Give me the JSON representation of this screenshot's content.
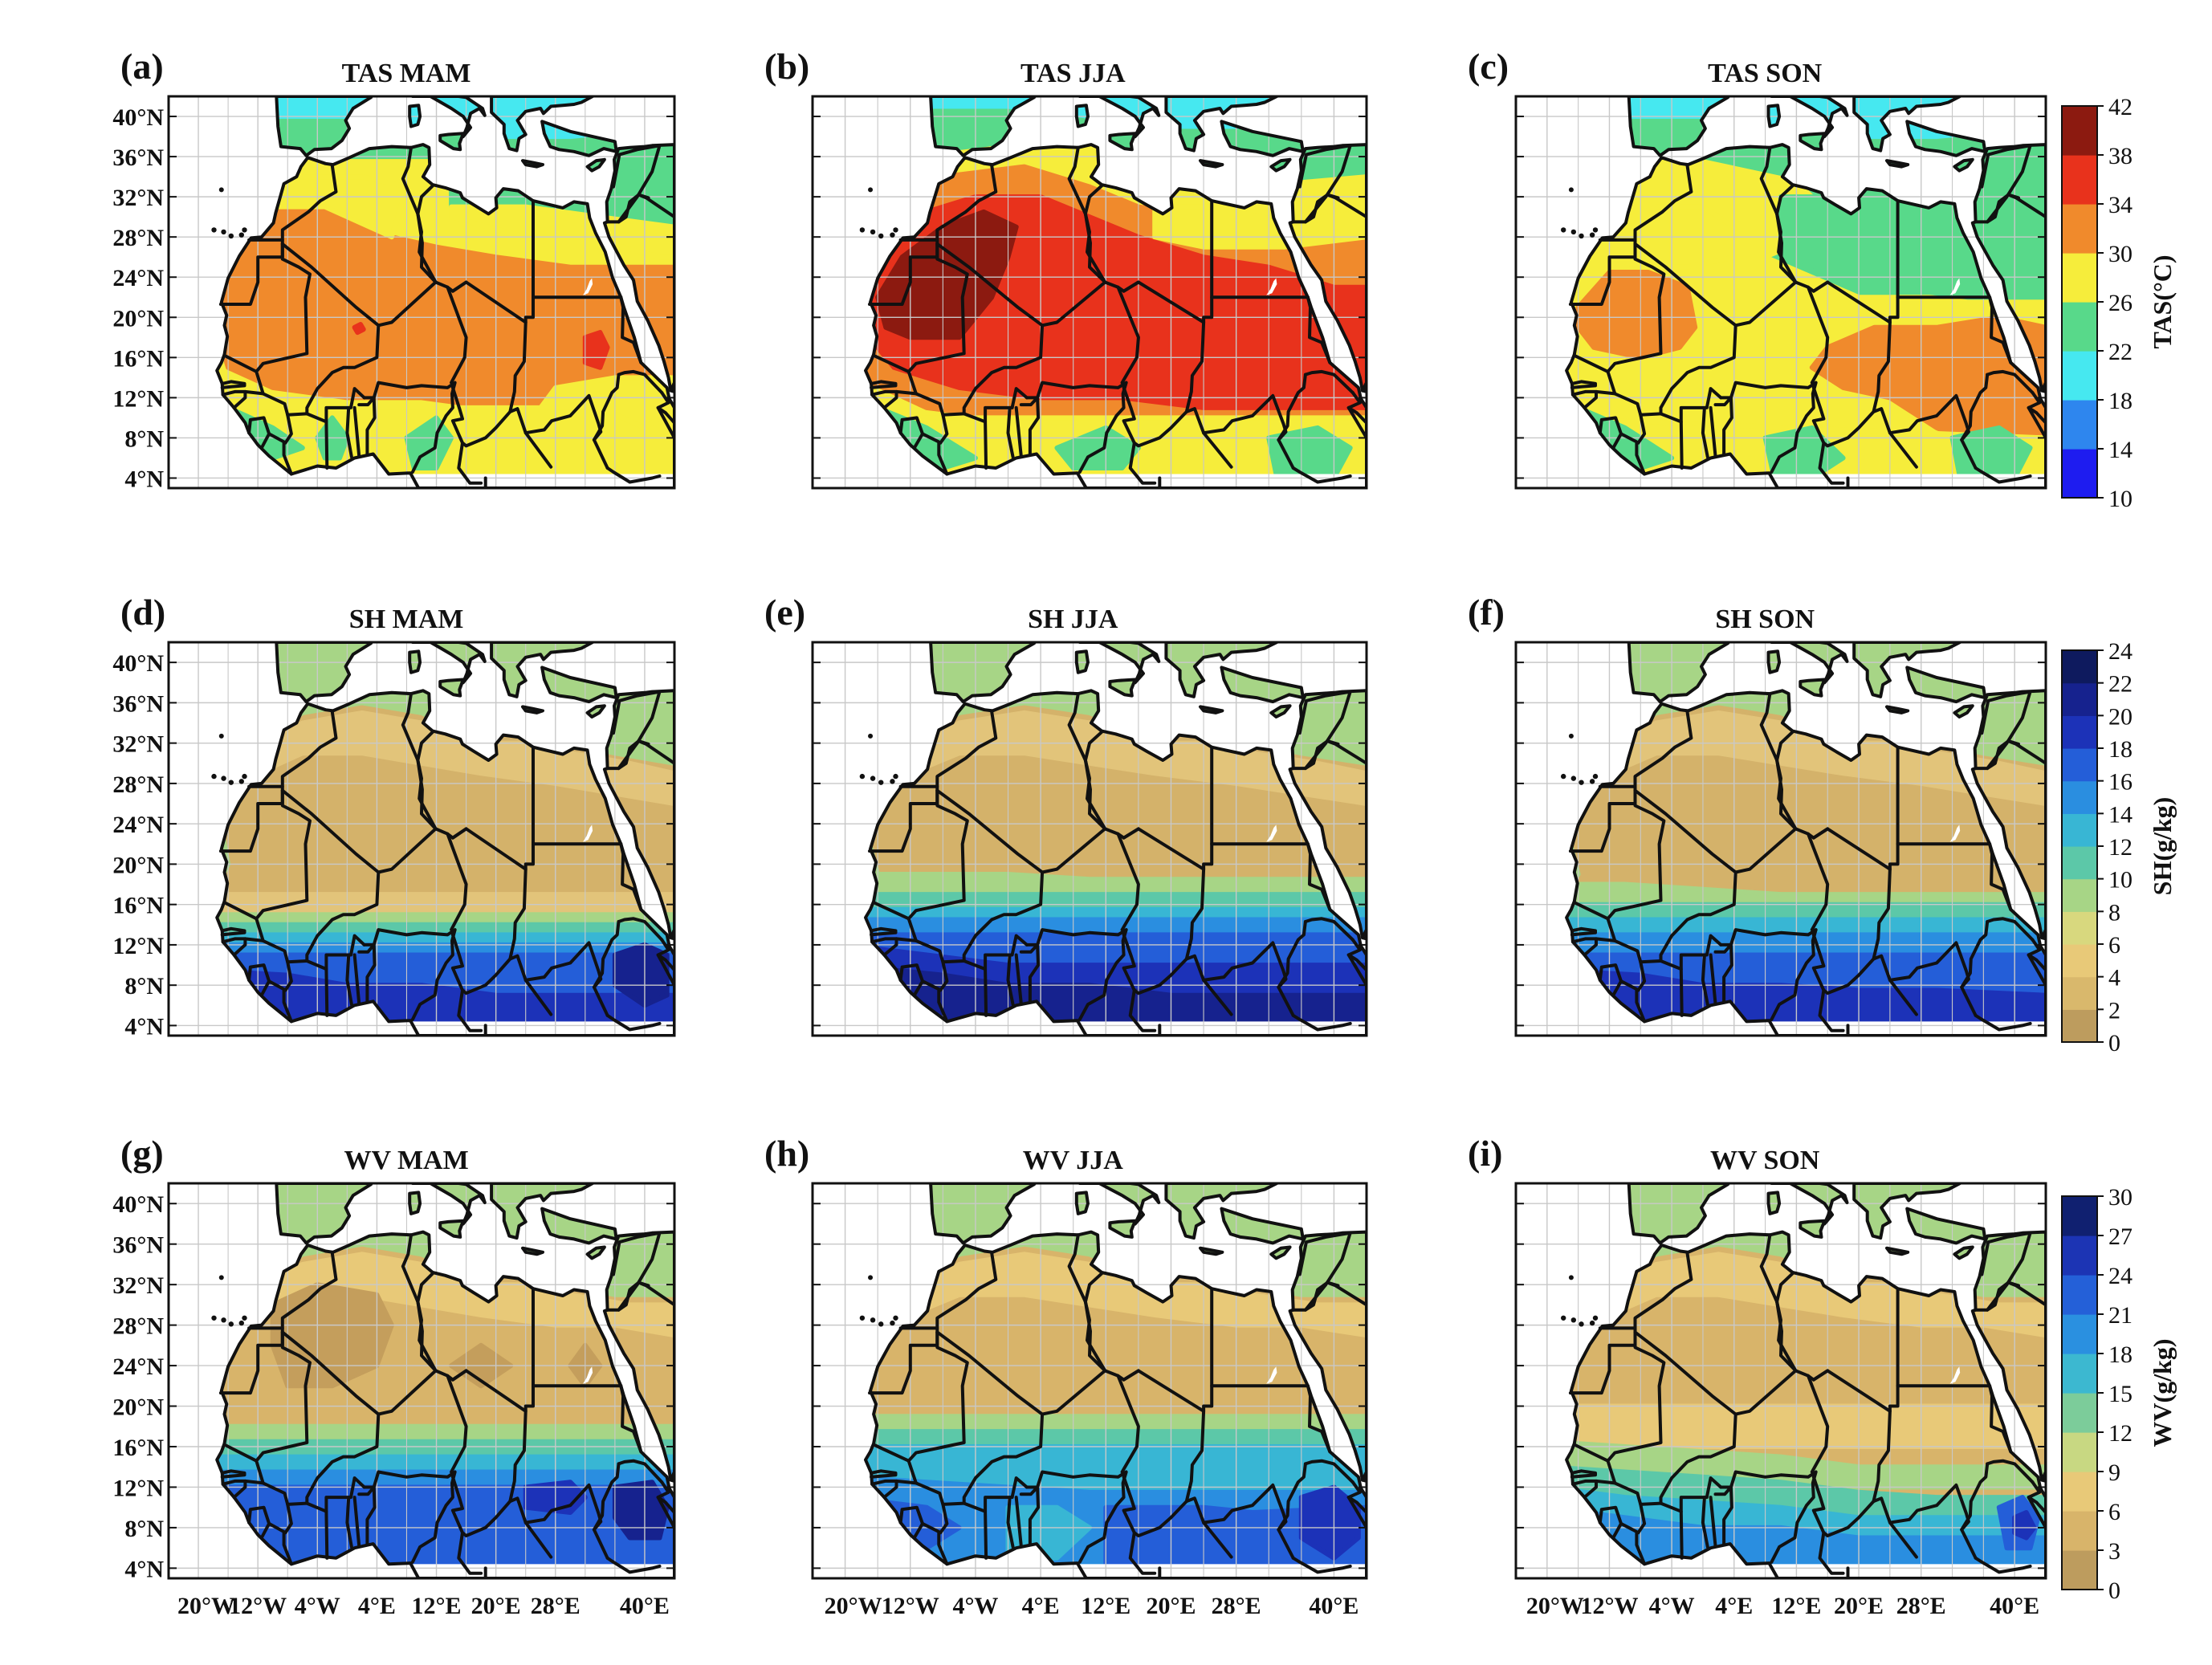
{
  "lat_labels": [
    "40°N",
    "36°N",
    "32°N",
    "28°N",
    "24°N",
    "20°N",
    "16°N",
    "12°N",
    "8°N",
    "4°N"
  ],
  "lon_labels": [
    "20°W",
    "12°W",
    "4°W",
    "4°E",
    "12°E",
    "20°E",
    "28°E",
    "40°E"
  ],
  "lon_labels_h": [
    "20°W",
    "12°W",
    "4°W",
    "4°E",
    "12°E",
    "20°E",
    "28°E",
    "40°E"
  ],
  "panels": [
    {
      "id": "a",
      "letter": "(a)",
      "title": "TAS MAM",
      "var": "tas",
      "season": "mam"
    },
    {
      "id": "b",
      "letter": "(b)",
      "title": "TAS JJA",
      "var": "tas",
      "season": "jja"
    },
    {
      "id": "c",
      "letter": "(c)",
      "title": "TAS SON",
      "var": "tas",
      "season": "son"
    },
    {
      "id": "d",
      "letter": "(d)",
      "title": "SH MAM",
      "var": "sh",
      "season": "mam"
    },
    {
      "id": "e",
      "letter": "(e)",
      "title": "SH JJA",
      "var": "sh",
      "season": "jja"
    },
    {
      "id": "f",
      "letter": "(f)",
      "title": "SH SON",
      "var": "sh",
      "season": "son"
    },
    {
      "id": "g",
      "letter": "(g)",
      "title": "WV MAM",
      "var": "wv",
      "season": "mam"
    },
    {
      "id": "h",
      "letter": "(h)",
      "title": "WV JJA",
      "var": "wv",
      "season": "jja"
    },
    {
      "id": "i",
      "letter": "(i)",
      "title": "WV SON",
      "var": "wv",
      "season": "son"
    }
  ],
  "colorbars": [
    {
      "id": "tas",
      "label": "TAS(°C)",
      "ticks": [
        "42",
        "38",
        "34",
        "30",
        "26",
        "22",
        "18",
        "14",
        "10"
      ],
      "colors": [
        "#1e1cf0",
        "#2e86ee",
        "#46e8f0",
        "#58d98a",
        "#f6ed3b",
        "#f08a2c",
        "#e8321c",
        "#8c1a10"
      ]
    },
    {
      "id": "sh",
      "label": "SH(g/kg)",
      "ticks": [
        "24",
        "22",
        "20",
        "18",
        "16",
        "14",
        "12",
        "10",
        "8",
        "6",
        "4",
        "2",
        "0"
      ],
      "colors": [
        "#bd9c5e",
        "#d9b86c",
        "#e8c978",
        "#d8d87e",
        "#a7d586",
        "#5cc8a8",
        "#38b6d4",
        "#2a8ee0",
        "#245ed8",
        "#1c32b8",
        "#16228e",
        "#0e1a5e"
      ]
    },
    {
      "id": "wv",
      "label": "WV(g/kg)",
      "ticks": [
        "30",
        "27",
        "24",
        "21",
        "18",
        "15",
        "12",
        "9",
        "6",
        "3",
        "0"
      ],
      "colors": [
        "#bd9c5e",
        "#d8b46a",
        "#e8c978",
        "#c8d882",
        "#7ccc9a",
        "#3cb8d0",
        "#2a90e0",
        "#2460d8",
        "#1c34b4",
        "#102070"
      ]
    }
  ],
  "palette": {
    "tas": {
      "t14": "#2e86ee",
      "t18": "#46e8f0",
      "t22": "#58d98a",
      "t26": "#f6ed3b",
      "t30": "#f08a2c",
      "t34": "#e8321c",
      "t38": "#8c1a10"
    },
    "sh": {
      "s1": "#d4b26a",
      "s2": "#e2c47a",
      "s3": "#a7d586",
      "s4": "#5cc8a8",
      "s5": "#38b6d4",
      "s6": "#2a8ee0",
      "s7": "#245ed8",
      "s8": "#1c32b8",
      "s9": "#16228e"
    },
    "wv": {
      "w0": "#c49e5c",
      "w1": "#d8b46a",
      "w2": "#e8c978",
      "w3": "#a7d586",
      "w4": "#5cc8a8",
      "w5": "#38b6d4",
      "w6": "#2a8ee0",
      "w7": "#245ed8",
      "w8": "#1c32b8",
      "w9": "#16228e"
    },
    "sea": "#ffffff",
    "border": "#111111",
    "grid": "#c8c8c8"
  }
}
